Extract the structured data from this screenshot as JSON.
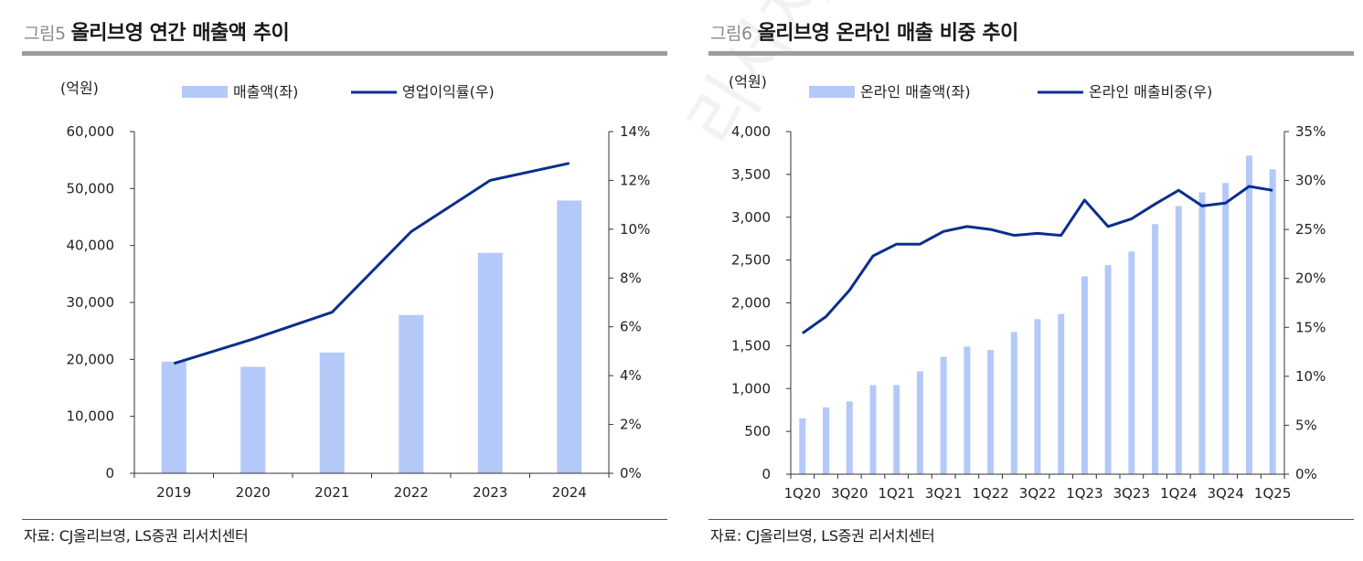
{
  "watermark": "리서치센터",
  "colors": {
    "bar": "#b4c9f7",
    "line": "#0a2f8c",
    "axis": "#333333"
  },
  "charts": [
    {
      "figure_label": "그림5",
      "title": "올리브영 연간 매출액 추이",
      "unit_left": "(억원)",
      "legend": {
        "bar": "매출액(좌)",
        "line": "영업이익률(우)"
      },
      "source": "자료: CJ올리브영, LS증권 리서치센터"
    },
    {
      "figure_label": "그림6",
      "title": "올리브영 온라인 매출 비중 추이",
      "unit_left": "(억원)",
      "legend": {
        "bar": "온라인 매출액(좌)",
        "line": "온라인 매출비중(우)"
      },
      "source": "자료: CJ올리브영, LS증권 리서치센터"
    }
  ],
  "chart_data": [
    {
      "type": "bar+line",
      "title": "올리브영 연간 매출액 추이",
      "categories": [
        "2019",
        "2020",
        "2021",
        "2022",
        "2023",
        "2024"
      ],
      "series": [
        {
          "name": "매출액(좌)",
          "type": "bar",
          "axis": "left",
          "values": [
            19600,
            18700,
            21200,
            27800,
            38700,
            47900
          ]
        },
        {
          "name": "영업이익률(우)",
          "type": "line",
          "axis": "right",
          "values": [
            4.5,
            5.5,
            6.6,
            9.9,
            12.0,
            12.7
          ]
        }
      ],
      "ylim_left": [
        0,
        60000
      ],
      "ylim_right": [
        0,
        14
      ],
      "yticks_left": [
        "0",
        "10,000",
        "20,000",
        "30,000",
        "40,000",
        "50,000",
        "60,000"
      ],
      "yticks_right": [
        "0%",
        "2%",
        "4%",
        "6%",
        "8%",
        "10%",
        "12%",
        "14%"
      ],
      "ylabel_left": "(억원)"
    },
    {
      "type": "bar+line",
      "title": "올리브영 온라인 매출 비중 추이",
      "categories": [
        "1Q20",
        "2Q20",
        "3Q20",
        "4Q20",
        "1Q21",
        "2Q21",
        "3Q21",
        "4Q21",
        "1Q22",
        "2Q22",
        "3Q22",
        "4Q22",
        "1Q23",
        "2Q23",
        "3Q23",
        "4Q23",
        "1Q24",
        "2Q24",
        "3Q24",
        "4Q24",
        "1Q25"
      ],
      "xtick_labels": [
        "1Q20",
        "3Q20",
        "1Q21",
        "3Q21",
        "1Q22",
        "3Q22",
        "1Q23",
        "3Q23",
        "1Q24",
        "3Q24",
        "1Q25"
      ],
      "series": [
        {
          "name": "온라인 매출액(좌)",
          "type": "bar",
          "axis": "left",
          "values": [
            650,
            780,
            850,
            1040,
            1040,
            1200,
            1370,
            1490,
            1450,
            1660,
            1810,
            1870,
            2310,
            2440,
            2600,
            2920,
            3130,
            3290,
            3400,
            3720,
            3560
          ]
        },
        {
          "name": "온라인 매출비중(우)",
          "type": "line",
          "axis": "right",
          "values": [
            14.4,
            16.1,
            18.8,
            22.3,
            23.5,
            23.5,
            24.8,
            25.3,
            25.0,
            24.4,
            24.6,
            24.4,
            28.0,
            25.3,
            26.1,
            27.6,
            29.0,
            27.4,
            27.7,
            29.4,
            29.0
          ]
        }
      ],
      "ylim_left": [
        0,
        4000
      ],
      "ylim_right": [
        0,
        35
      ],
      "yticks_left": [
        "0",
        "500",
        "1,000",
        "1,500",
        "2,000",
        "2,500",
        "3,000",
        "3,500",
        "4,000"
      ],
      "yticks_right": [
        "0%",
        "5%",
        "10%",
        "15%",
        "20%",
        "25%",
        "30%",
        "35%"
      ],
      "ylabel_left": "(억원)"
    }
  ]
}
